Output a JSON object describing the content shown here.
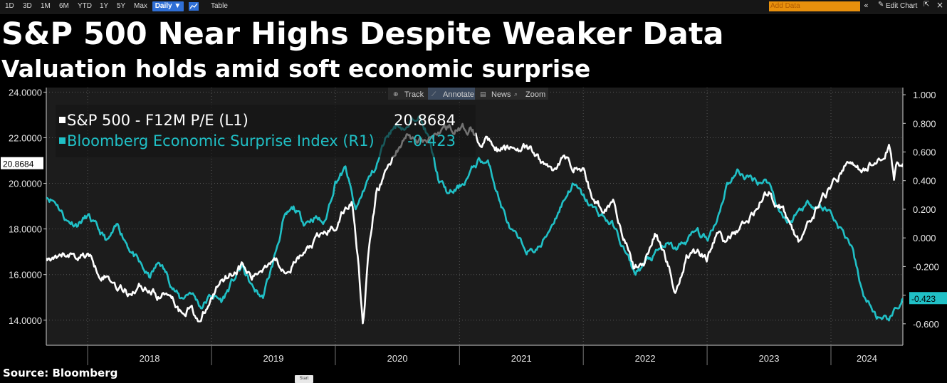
{
  "toolbar": {
    "ranges": [
      "1D",
      "3D",
      "1M",
      "6M",
      "YTD",
      "1Y",
      "5Y",
      "Max"
    ],
    "frequency": "Daily ▼",
    "table_label": "Table",
    "add_data_placeholder": "Add Data",
    "edit_chart_label": "Edit Chart",
    "icons": [
      "line-chart-icon",
      "double-chevron-icon",
      "pencil-icon",
      "collapse-icon",
      "close-icon"
    ]
  },
  "header": {
    "title": "S&P 500 Near Highs Despite Weaker Data",
    "subtitle": "Valuation holds amid soft economic surprise"
  },
  "chart_tools": [
    "Track",
    "Annotate",
    "News",
    "Zoom"
  ],
  "chart_tools_icons": [
    "crosshair-icon",
    "pencil-icon",
    "news-icon",
    "magnifier-icon"
  ],
  "footer": {
    "source": "Source: Bloomberg",
    "start_button": "Start"
  },
  "colors": {
    "background": "#000000",
    "plot_background": "#1c1c1c",
    "sp500_line": "#ffffff",
    "surprise_line": "#20c0c6",
    "add_data_bg": "#e8900c",
    "active_button": "#2f6fd6"
  },
  "chart_data": {
    "type": "line",
    "title": "S&P 500 Near Highs Despite Weaker Data",
    "subtitle": "Valuation holds amid soft economic surprise",
    "xlabel": "",
    "x_tick_labels": [
      "2018",
      "2019",
      "2020",
      "2021",
      "2022",
      "2023",
      "2024"
    ],
    "x_range": [
      "2017-09-01",
      "2024-07-31"
    ],
    "grid": true,
    "legend_placement": "top-left",
    "left_axis": {
      "ylim": [
        12.9,
        24.2
      ],
      "ticks": [
        "24.0000",
        "22.0000",
        "20.0000",
        "18.0000",
        "16.0000",
        "14.0000"
      ],
      "current_label": "20.8684"
    },
    "right_axis": {
      "ylim": [
        -0.75,
        1.05
      ],
      "ticks": [
        "1.000",
        "0.800",
        "0.600",
        "0.400",
        "0.200",
        "0.000",
        "-0.200",
        "-0.400",
        "-0.600"
      ],
      "current_label": "-0.423"
    },
    "series": [
      {
        "name": "S&P 500 - F12M P/E (L1)",
        "last_value": "20.8684",
        "axis": "left",
        "points": [
          [
            "2017-09-01",
            16.7
          ],
          [
            "2017-10-01",
            16.5
          ],
          [
            "2017-11-01",
            16.9
          ],
          [
            "2017-12-01",
            16.8
          ],
          [
            "2018-01-01",
            16.9
          ],
          [
            "2018-02-01",
            16.2
          ],
          [
            "2018-03-01",
            15.9
          ],
          [
            "2018-04-01",
            15.5
          ],
          [
            "2018-05-01",
            15.2
          ],
          [
            "2018-06-01",
            15.5
          ],
          [
            "2018-07-01",
            15.4
          ],
          [
            "2018-08-01",
            15.0
          ],
          [
            "2018-09-01",
            15.3
          ],
          [
            "2018-10-01",
            14.4
          ],
          [
            "2018-11-01",
            14.6
          ],
          [
            "2018-12-01",
            13.9
          ],
          [
            "2019-01-01",
            14.9
          ],
          [
            "2019-02-01",
            15.9
          ],
          [
            "2019-03-01",
            16.1
          ],
          [
            "2019-04-01",
            16.4
          ],
          [
            "2019-05-01",
            15.8
          ],
          [
            "2019-06-01",
            16.3
          ],
          [
            "2019-07-01",
            16.8
          ],
          [
            "2019-08-01",
            16.3
          ],
          [
            "2019-09-01",
            16.5
          ],
          [
            "2019-10-01",
            16.9
          ],
          [
            "2019-11-01",
            17.4
          ],
          [
            "2019-12-01",
            17.8
          ],
          [
            "2020-01-01",
            18.1
          ],
          [
            "2020-02-01",
            18.9
          ],
          [
            "2020-02-20",
            19.2
          ],
          [
            "2020-03-10",
            16.5
          ],
          [
            "2020-03-23",
            13.8
          ],
          [
            "2020-04-10",
            17.2
          ],
          [
            "2020-05-01",
            19.5
          ],
          [
            "2020-06-01",
            20.6
          ],
          [
            "2020-07-01",
            21.5
          ],
          [
            "2020-08-01",
            22.1
          ],
          [
            "2020-09-01",
            21.8
          ],
          [
            "2020-10-01",
            21.9
          ],
          [
            "2020-11-01",
            22.3
          ],
          [
            "2020-12-01",
            22.5
          ],
          [
            "2021-01-01",
            22.3
          ],
          [
            "2021-02-01",
            22.4
          ],
          [
            "2021-03-01",
            21.8
          ],
          [
            "2021-04-01",
            22.0
          ],
          [
            "2021-05-01",
            21.4
          ],
          [
            "2021-06-01",
            21.5
          ],
          [
            "2021-07-01",
            21.6
          ],
          [
            "2021-08-01",
            21.4
          ],
          [
            "2021-09-01",
            20.9
          ],
          [
            "2021-10-01",
            20.6
          ],
          [
            "2021-11-01",
            21.1
          ],
          [
            "2021-12-01",
            20.8
          ],
          [
            "2022-01-01",
            20.6
          ],
          [
            "2022-02-01",
            19.2
          ],
          [
            "2022-03-01",
            18.9
          ],
          [
            "2022-04-01",
            19.3
          ],
          [
            "2022-05-01",
            17.6
          ],
          [
            "2022-06-01",
            16.2
          ],
          [
            "2022-07-01",
            16.6
          ],
          [
            "2022-08-01",
            17.8
          ],
          [
            "2022-09-01",
            16.8
          ],
          [
            "2022-10-01",
            15.2
          ],
          [
            "2022-11-01",
            16.9
          ],
          [
            "2022-12-01",
            17.0
          ],
          [
            "2023-01-01",
            16.8
          ],
          [
            "2023-02-01",
            17.8
          ],
          [
            "2023-03-01",
            17.4
          ],
          [
            "2023-04-01",
            18.0
          ],
          [
            "2023-05-01",
            18.3
          ],
          [
            "2023-06-01",
            19.1
          ],
          [
            "2023-07-01",
            19.6
          ],
          [
            "2023-08-01",
            19.1
          ],
          [
            "2023-09-01",
            18.3
          ],
          [
            "2023-10-01",
            17.4
          ],
          [
            "2023-11-01",
            18.2
          ],
          [
            "2023-12-01",
            19.3
          ],
          [
            "2024-01-01",
            19.8
          ],
          [
            "2024-02-01",
            20.5
          ],
          [
            "2024-03-01",
            21.0
          ],
          [
            "2024-04-01",
            20.4
          ],
          [
            "2024-05-01",
            20.9
          ],
          [
            "2024-06-01",
            21.3
          ],
          [
            "2024-06-20",
            21.6
          ],
          [
            "2024-07-05",
            20.2
          ],
          [
            "2024-07-15",
            21.0
          ],
          [
            "2024-07-31",
            20.8684
          ]
        ]
      },
      {
        "name": "Bloomberg Economic Surprise Index (R1)",
        "last_value": "-0.423",
        "axis": "right",
        "points": [
          [
            "2017-09-01",
            0.3
          ],
          [
            "2017-10-01",
            0.25
          ],
          [
            "2017-11-01",
            0.12
          ],
          [
            "2017-12-01",
            0.1
          ],
          [
            "2018-01-01",
            0.15
          ],
          [
            "2018-02-01",
            0.05
          ],
          [
            "2018-03-01",
            -0.03
          ],
          [
            "2018-04-01",
            0.08
          ],
          [
            "2018-05-01",
            -0.05
          ],
          [
            "2018-06-01",
            -0.18
          ],
          [
            "2018-07-01",
            -0.28
          ],
          [
            "2018-08-01",
            -0.17
          ],
          [
            "2018-09-01",
            -0.3
          ],
          [
            "2018-10-01",
            -0.43
          ],
          [
            "2018-11-01",
            -0.37
          ],
          [
            "2018-12-01",
            -0.48
          ],
          [
            "2019-01-01",
            -0.4
          ],
          [
            "2019-02-01",
            -0.44
          ],
          [
            "2019-03-01",
            -0.32
          ],
          [
            "2019-04-01",
            -0.2
          ],
          [
            "2019-05-01",
            -0.35
          ],
          [
            "2019-06-01",
            -0.42
          ],
          [
            "2019-07-01",
            -0.18
          ],
          [
            "2019-08-01",
            0.12
          ],
          [
            "2019-09-01",
            0.2
          ],
          [
            "2019-10-01",
            0.11
          ],
          [
            "2019-11-01",
            0.15
          ],
          [
            "2019-12-01",
            0.1
          ],
          [
            "2020-01-01",
            0.4
          ],
          [
            "2020-02-01",
            0.48
          ],
          [
            "2020-03-01",
            0.18
          ],
          [
            "2020-04-01",
            0.38
          ],
          [
            "2020-05-01",
            0.5
          ],
          [
            "2020-06-01",
            0.72
          ],
          [
            "2020-07-01",
            0.8
          ],
          [
            "2020-08-01",
            0.76
          ],
          [
            "2020-09-01",
            0.88
          ],
          [
            "2020-10-01",
            0.7
          ],
          [
            "2020-11-01",
            0.4
          ],
          [
            "2020-12-01",
            0.3
          ],
          [
            "2021-01-01",
            0.35
          ],
          [
            "2021-02-01",
            0.45
          ],
          [
            "2021-03-01",
            0.55
          ],
          [
            "2021-04-01",
            0.5
          ],
          [
            "2021-05-01",
            0.25
          ],
          [
            "2021-06-01",
            0.05
          ],
          [
            "2021-07-01",
            -0.05
          ],
          [
            "2021-08-01",
            -0.1
          ],
          [
            "2021-09-01",
            -0.05
          ],
          [
            "2021-10-01",
            0.1
          ],
          [
            "2021-11-01",
            0.25
          ],
          [
            "2021-12-01",
            0.38
          ],
          [
            "2022-01-01",
            0.28
          ],
          [
            "2022-02-01",
            0.2
          ],
          [
            "2022-03-01",
            0.15
          ],
          [
            "2022-04-01",
            0.08
          ],
          [
            "2022-05-01",
            -0.08
          ],
          [
            "2022-06-01",
            -0.25
          ],
          [
            "2022-07-01",
            -0.18
          ],
          [
            "2022-08-01",
            -0.12
          ],
          [
            "2022-09-01",
            -0.05
          ],
          [
            "2022-10-01",
            -0.08
          ],
          [
            "2022-11-01",
            -0.02
          ],
          [
            "2022-12-01",
            0.05
          ],
          [
            "2023-01-01",
            -0.02
          ],
          [
            "2023-02-01",
            0.15
          ],
          [
            "2023-03-01",
            0.38
          ],
          [
            "2023-04-01",
            0.46
          ],
          [
            "2023-05-01",
            0.42
          ],
          [
            "2023-06-01",
            0.4
          ],
          [
            "2023-07-01",
            0.4
          ],
          [
            "2023-08-01",
            0.2
          ],
          [
            "2023-09-01",
            0.1
          ],
          [
            "2023-10-01",
            0.2
          ],
          [
            "2023-11-01",
            0.25
          ],
          [
            "2023-12-01",
            0.22
          ],
          [
            "2024-01-01",
            0.18
          ],
          [
            "2024-02-01",
            0.05
          ],
          [
            "2024-03-01",
            -0.05
          ],
          [
            "2024-04-01",
            -0.38
          ],
          [
            "2024-05-01",
            -0.5
          ],
          [
            "2024-06-01",
            -0.6
          ],
          [
            "2024-07-01",
            -0.55
          ],
          [
            "2024-07-31",
            -0.423
          ]
        ]
      }
    ]
  }
}
